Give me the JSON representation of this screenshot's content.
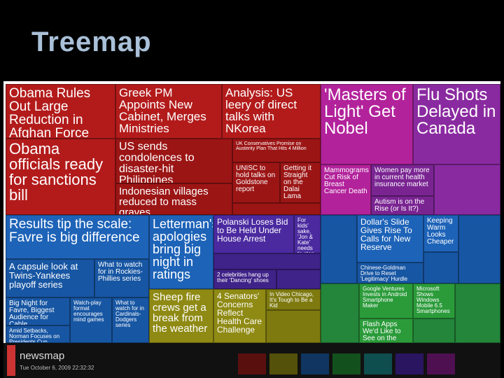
{
  "title": "Treemap",
  "tiles": [
    {
      "headline": "Obama Rules Out Large Reduction in Afghan Force"
    },
    {
      "headline": "Greek PM Appoints New Cabinet, Merges Ministries"
    },
    {
      "headline": "Analysis: US leery of direct talks with NKorea"
    },
    {
      "headline": "Obama officials ready for sanctions bill"
    },
    {
      "headline": "US sends condolences to disaster-hit Philippines"
    },
    {
      "headline": "UK Conservatives Promise on Austerity Plan That Hits 4 Million"
    },
    {
      "headline": "UNISC to hold talks on Goldstone report"
    },
    {
      "headline": "Getting it Straight on the Dalai Lama"
    },
    {
      "headline": "Indonesian villages reduced to mass graves"
    },
    {
      "headline": "'Masters of Light' Get Nobel"
    },
    {
      "headline": "Flu Shots Delayed in Canada"
    },
    {
      "headline": "Mammograms Cut Risk of Breast Cancer Death"
    },
    {
      "headline": "Women pay more in current health insurance market"
    },
    {
      "headline": "Autism is on the Rise (or Is It?)"
    },
    {
      "headline": "Results tip the scale: Favre is big difference"
    },
    {
      "headline": "Letterman's apologies bring big night in ratings"
    },
    {
      "headline": "A capsule look at Twins-Yankees playoff series"
    },
    {
      "headline": "What to watch for in Rockies-Phillies series"
    },
    {
      "headline": "Big Night for Favre, Biggest Audience for Cable"
    },
    {
      "headline": "Amid Setbacks, Norman Focuses on Presidents Cup"
    },
    {
      "headline": "Watch-play format encourages mind games"
    },
    {
      "headline": "What to watch for in Cardinals-Dodgers series"
    },
    {
      "headline": "Polanski Loses Bid to Be Held Under House Arrest"
    },
    {
      "headline": "For kids' sake, 'Jon & Kate' needs to stop now"
    },
    {
      "headline": "2 celebrities hang up their 'Dancing' shoes"
    },
    {
      "headline": "Dollar's Slide Gives Rise To Calls for New Reserve"
    },
    {
      "headline": "Keeping Warm Looks Cheaper"
    },
    {
      "headline": "Chinese-Goldman Drive to Reset 'Legitimacy' Hurdle"
    },
    {
      "headline": "Sheep fire crews get a break from the weather"
    },
    {
      "headline": "4 Senators' Concerns Reflect Health Care Challenge"
    },
    {
      "headline": "In Video Chicago, It's Tough to Be a Kid"
    },
    {
      "headline": "Google Ventures Invests in Android Smartphone Maker"
    },
    {
      "headline": "Microsoft Shows Windows Mobile 6.5 Smartphones"
    },
    {
      "headline": "Flash Apps We'd Like to See on the iPhone"
    }
  ],
  "footer": {
    "brand": "newsmap",
    "date": "Tue October 6, 2009 22:32:32"
  }
}
